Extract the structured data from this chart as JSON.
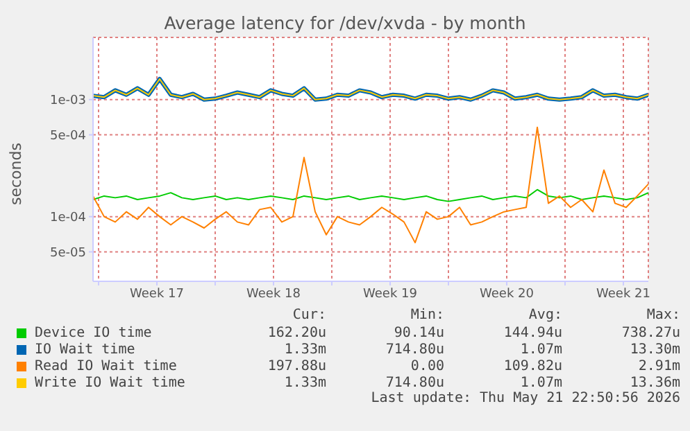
{
  "chart_data": {
    "type": "line",
    "title": "Average latency for /dev/xvda - by month",
    "ylabel": "seconds",
    "log": "y",
    "grid": true,
    "legend": "bottom",
    "marker": "none",
    "line_style": "solid",
    "x": [
      "2026-04-19T16:00",
      "2026-04-20T08:00",
      "2026-04-21T00:00",
      "2026-04-21T16:00",
      "2026-04-22T08:00",
      "2026-04-23T00:00",
      "2026-04-23T16:00",
      "2026-04-24T08:00",
      "2026-04-25T00:00",
      "2026-04-25T16:00",
      "2026-04-26T08:00",
      "2026-04-27T00:00",
      "2026-04-27T16:00",
      "2026-04-28T08:00",
      "2026-04-29T00:00",
      "2026-04-29T16:00",
      "2026-04-30T08:00",
      "2026-05-01T00:00",
      "2026-05-01T16:00",
      "2026-05-02T08:00",
      "2026-05-03T00:00",
      "2026-05-03T16:00",
      "2026-05-04T08:00",
      "2026-05-05T00:00",
      "2026-05-05T16:00",
      "2026-05-06T08:00",
      "2026-05-07T00:00",
      "2026-05-07T16:00",
      "2026-05-08T08:00",
      "2026-05-09T00:00",
      "2026-05-09T16:00",
      "2026-05-10T08:00",
      "2026-05-11T00:00",
      "2026-05-11T16:00",
      "2026-05-12T08:00",
      "2026-05-13T00:00",
      "2026-05-13T16:00",
      "2026-05-14T08:00",
      "2026-05-15T00:00",
      "2026-05-15T16:00",
      "2026-05-16T08:00",
      "2026-05-17T00:00",
      "2026-05-17T16:00",
      "2026-05-18T08:00",
      "2026-05-19T00:00",
      "2026-05-19T16:00",
      "2026-05-20T08:00",
      "2026-05-21T00:00",
      "2026-05-21T16:00",
      "2026-05-22T08:00",
      "2026-05-23T00:00"
    ],
    "xlim": [
      "2026-04-19T16:00",
      "2026-05-23T00:00"
    ],
    "xticks": [
      {
        "value": "2026-04-20T00:00",
        "label": null
      },
      {
        "value": "2026-04-23T12:00",
        "label": "Week 17"
      },
      {
        "value": "2026-04-27T00:00",
        "label": null
      },
      {
        "value": "2026-04-30T12:00",
        "label": "Week 18"
      },
      {
        "value": "2026-05-04T00:00",
        "label": null
      },
      {
        "value": "2026-05-07T12:00",
        "label": "Week 19"
      },
      {
        "value": "2026-05-11T00:00",
        "label": null
      },
      {
        "value": "2026-05-14T12:00",
        "label": "Week 20"
      },
      {
        "value": "2026-05-18T00:00",
        "label": null
      },
      {
        "value": "2026-05-21T12:00",
        "label": "Week 21"
      }
    ],
    "ylim": [
      2.8e-05,
      0.0034
    ],
    "yticks": [
      {
        "value": 5e-05,
        "label": "5e-05"
      },
      {
        "value": 0.0001,
        "label": "1e-04"
      },
      {
        "value": 0.0005,
        "label": "5e-04"
      },
      {
        "value": 0.001,
        "label": "1e-03"
      }
    ],
    "series": [
      {
        "name": "Device IO time",
        "color": "#00cc00",
        "values": [
          0.00014,
          0.00015,
          0.000145,
          0.00015,
          0.00014,
          0.000145,
          0.00015,
          0.00016,
          0.000145,
          0.00014,
          0.000145,
          0.00015,
          0.00014,
          0.000145,
          0.00014,
          0.000145,
          0.00015,
          0.000145,
          0.00014,
          0.00015,
          0.000145,
          0.00014,
          0.000145,
          0.00015,
          0.00014,
          0.000145,
          0.00015,
          0.000145,
          0.00014,
          0.000145,
          0.00015,
          0.00014,
          0.000135,
          0.00014,
          0.000145,
          0.00015,
          0.00014,
          0.000145,
          0.00015,
          0.000145,
          0.00017,
          0.00015,
          0.000145,
          0.00015,
          0.00014,
          0.000145,
          0.00015,
          0.000145,
          0.00014,
          0.000145,
          0.00016
        ]
      },
      {
        "name": "IO Wait time",
        "color": "#0066b3",
        "values": [
          0.00108,
          0.00105,
          0.0012,
          0.0011,
          0.00125,
          0.0011,
          0.0015,
          0.0011,
          0.00105,
          0.00112,
          0.001,
          0.00102,
          0.00108,
          0.00115,
          0.0011,
          0.00105,
          0.0012,
          0.00112,
          0.00108,
          0.00125,
          0.001,
          0.00102,
          0.0011,
          0.00108,
          0.0012,
          0.00115,
          0.00105,
          0.0011,
          0.00108,
          0.00102,
          0.0011,
          0.00108,
          0.00102,
          0.00105,
          0.001,
          0.00108,
          0.0012,
          0.00115,
          0.00102,
          0.00105,
          0.0011,
          0.00102,
          0.001,
          0.00102,
          0.00105,
          0.0012,
          0.00108,
          0.0011,
          0.00105,
          0.00102,
          0.0011
        ]
      },
      {
        "name": "Read IO Wait time",
        "color": "#ff8000",
        "values": [
          0.00015,
          0.0001,
          9e-05,
          0.00011,
          9.5e-05,
          0.00012,
          0.0001,
          8.5e-05,
          0.0001,
          9e-05,
          8e-05,
          9.5e-05,
          0.00011,
          9e-05,
          8.5e-05,
          0.000115,
          0.00012,
          9e-05,
          0.0001,
          0.00032,
          0.00011,
          7e-05,
          0.0001,
          9e-05,
          8.5e-05,
          0.0001,
          0.00012,
          0.000105,
          9e-05,
          6e-05,
          0.00011,
          9.5e-05,
          0.0001,
          0.00012,
          8.5e-05,
          9e-05,
          0.0001,
          0.00011,
          0.000115,
          0.00012,
          0.00058,
          0.00013,
          0.00015,
          0.00012,
          0.00014,
          0.00011,
          0.00025,
          0.00013,
          0.00012,
          0.00015,
          0.00019
        ]
      },
      {
        "name": "Write IO Wait time",
        "color": "#ffcc00",
        "values": [
          0.00108,
          0.00105,
          0.0012,
          0.0011,
          0.00125,
          0.0011,
          0.0015,
          0.0011,
          0.00105,
          0.00112,
          0.001,
          0.00102,
          0.00108,
          0.00115,
          0.0011,
          0.00105,
          0.0012,
          0.00112,
          0.00108,
          0.00125,
          0.001,
          0.00102,
          0.0011,
          0.00108,
          0.0012,
          0.00115,
          0.00105,
          0.0011,
          0.00108,
          0.00102,
          0.0011,
          0.00108,
          0.00102,
          0.00105,
          0.001,
          0.00108,
          0.0012,
          0.00115,
          0.00102,
          0.00105,
          0.0011,
          0.00102,
          0.001,
          0.00102,
          0.00105,
          0.0012,
          0.00108,
          0.0011,
          0.00105,
          0.00102,
          0.0011
        ]
      }
    ],
    "annotations": [
      "Cur:",
      "Min:",
      "Avg:",
      "Max:",
      "162.20u",
      "90.14u",
      "144.94u",
      "738.27u",
      "1.33m",
      "714.80u",
      "1.07m",
      "13.30m",
      "197.88u",
      "0.00",
      "109.82u",
      "2.91m",
      "1.33m",
      "714.80u",
      "1.07m",
      "13.36m",
      "Last update: Thu May 21 22:50:56 2026"
    ]
  }
}
